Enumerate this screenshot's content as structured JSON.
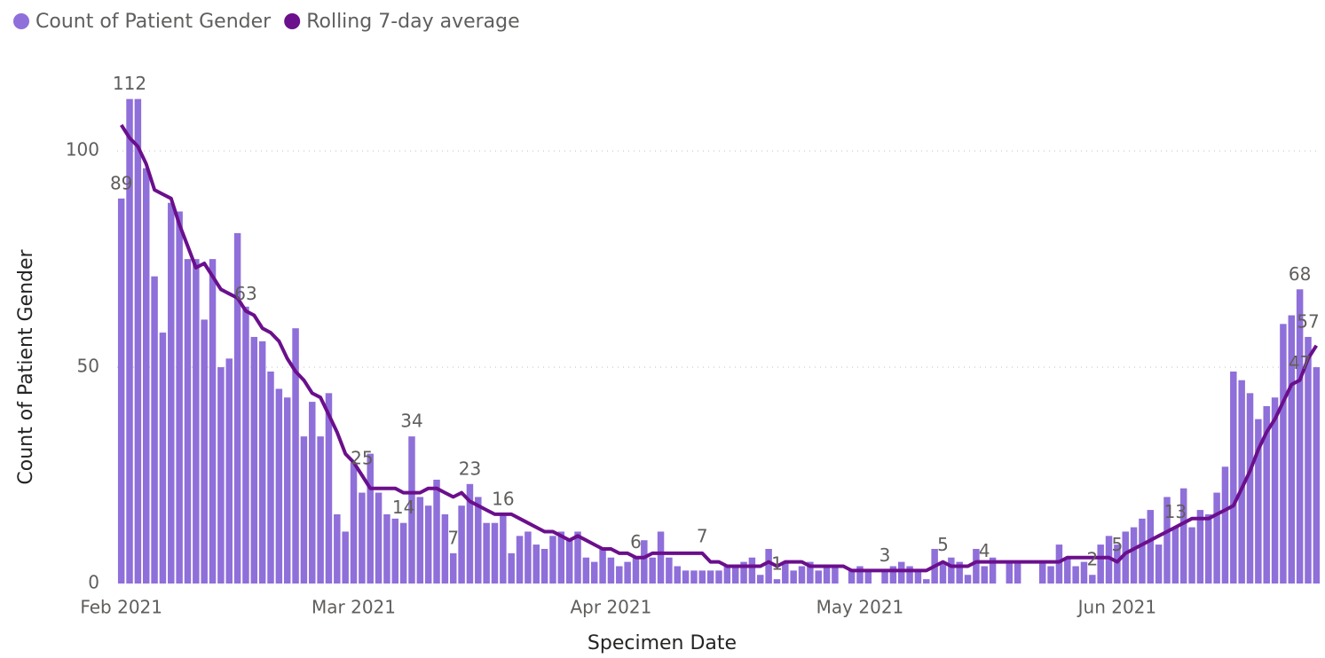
{
  "chart_data": {
    "type": "bar_line",
    "y_axis_label": "Count of Patient Gender",
    "x_axis_label": "Specimen Date",
    "categories": [
      "Feb 2021",
      null,
      null,
      null,
      null,
      null,
      null,
      null,
      null,
      null,
      null,
      null,
      null,
      null,
      null,
      null,
      null,
      null,
      null,
      null,
      null,
      null,
      null,
      null,
      null,
      null,
      null,
      null,
      "Mar 2021",
      null,
      null,
      null,
      null,
      null,
      null,
      null,
      null,
      null,
      null,
      null,
      null,
      null,
      null,
      null,
      null,
      null,
      null,
      null,
      null,
      null,
      null,
      null,
      null,
      null,
      null,
      null,
      null,
      null,
      null,
      "Apr 2021",
      null,
      null,
      null,
      null,
      null,
      null,
      null,
      null,
      null,
      null,
      null,
      null,
      null,
      null,
      null,
      null,
      null,
      null,
      null,
      null,
      null,
      null,
      null,
      null,
      null,
      null,
      null,
      null,
      null,
      "May 2021",
      null,
      null,
      null,
      null,
      null,
      null,
      null,
      null,
      null,
      null,
      null,
      null,
      null,
      null,
      null,
      null,
      null,
      null,
      null,
      null,
      null,
      null,
      null,
      null,
      null,
      null,
      null,
      null,
      null,
      null,
      "Jun 2021",
      null,
      null,
      null,
      null,
      null,
      null,
      null,
      null,
      null,
      null,
      null,
      null,
      null,
      null,
      null,
      null,
      null,
      null,
      null,
      null,
      null,
      null,
      null,
      null
    ],
    "series": [
      {
        "name": "Count of Patient Gender",
        "color": "#8f6fd9",
        "kind": "bar",
        "values": [
          89,
          112,
          112,
          96,
          71,
          58,
          88,
          86,
          75,
          75,
          61,
          75,
          50,
          52,
          81,
          64,
          57,
          56,
          49,
          45,
          43,
          59,
          34,
          42,
          34,
          44,
          16,
          12,
          28,
          21,
          30,
          21,
          16,
          15,
          14,
          34,
          20,
          18,
          24,
          16,
          7,
          18,
          23,
          20,
          14,
          14,
          16,
          7,
          11,
          12,
          9,
          8,
          11,
          12,
          10,
          12,
          6,
          5,
          8,
          6,
          4,
          5,
          6,
          10,
          6,
          12,
          6,
          4,
          3,
          3,
          3,
          3,
          3,
          4,
          4,
          5,
          6,
          2,
          8,
          1,
          5,
          3,
          4,
          5,
          3,
          4,
          4,
          0,
          3,
          4,
          3,
          0,
          3,
          4,
          5,
          4,
          3,
          1,
          8,
          5,
          6,
          5,
          2,
          8,
          4,
          6,
          0,
          5,
          5,
          0,
          0,
          5,
          4,
          9,
          6,
          4,
          5,
          2,
          9,
          11,
          9,
          12,
          13,
          15,
          17,
          9,
          20,
          13,
          22,
          13,
          17,
          16,
          21,
          27,
          49,
          47,
          44,
          38,
          41,
          43,
          60,
          62,
          68,
          57,
          50
        ],
        "value_labels": [
          "89",
          "112",
          null,
          null,
          null,
          null,
          null,
          null,
          null,
          null,
          null,
          null,
          null,
          null,
          null,
          null,
          null,
          null,
          null,
          null,
          null,
          null,
          null,
          null,
          null,
          null,
          null,
          null,
          null,
          null,
          null,
          null,
          null,
          null,
          "14",
          "34",
          null,
          null,
          null,
          null,
          "7",
          null,
          "23",
          null,
          null,
          null,
          "16",
          null,
          null,
          null,
          null,
          null,
          null,
          null,
          null,
          null,
          null,
          null,
          null,
          null,
          null,
          null,
          "6",
          null,
          null,
          null,
          null,
          null,
          null,
          null,
          null,
          null,
          null,
          null,
          null,
          null,
          null,
          null,
          null,
          "1",
          null,
          null,
          null,
          null,
          null,
          null,
          null,
          null,
          null,
          null,
          null,
          null,
          "3",
          null,
          null,
          null,
          null,
          null,
          null,
          null,
          null,
          null,
          null,
          null,
          "4",
          null,
          null,
          null,
          null,
          null,
          null,
          null,
          null,
          null,
          null,
          null,
          null,
          "2",
          null,
          null,
          null,
          null,
          null,
          null,
          null,
          null,
          null,
          "13",
          null,
          null,
          null,
          null,
          null,
          null,
          null,
          null,
          null,
          null,
          null,
          null,
          null,
          null,
          "68",
          "57",
          null
        ]
      },
      {
        "name": "Rolling 7-day average",
        "color": "#6b0f8c",
        "kind": "line",
        "values": [
          106,
          103,
          101,
          97,
          91,
          90,
          89,
          83,
          78,
          73,
          74,
          71,
          68,
          67,
          66,
          63,
          62,
          59,
          58,
          56,
          52,
          49,
          47,
          44,
          43,
          39,
          35,
          30,
          28,
          25,
          22,
          22,
          22,
          22,
          21,
          21,
          21,
          22,
          22,
          21,
          20,
          21,
          19,
          18,
          17,
          16,
          16,
          16,
          15,
          14,
          13,
          12,
          12,
          11,
          10,
          11,
          10,
          9,
          8,
          8,
          7,
          7,
          6,
          6,
          7,
          7,
          7,
          7,
          7,
          7,
          7,
          5,
          5,
          4,
          4,
          4,
          4,
          4,
          5,
          4,
          5,
          5,
          5,
          4,
          4,
          4,
          4,
          4,
          3,
          3,
          3,
          3,
          3,
          3,
          3,
          3,
          3,
          3,
          4,
          5,
          4,
          4,
          4,
          5,
          5,
          5,
          5,
          5,
          5,
          5,
          5,
          5,
          5,
          5,
          6,
          6,
          6,
          6,
          6,
          6,
          5,
          7,
          8,
          9,
          10,
          11,
          12,
          13,
          14,
          15,
          15,
          15,
          16,
          17,
          18,
          22,
          26,
          31,
          35,
          38,
          42,
          46,
          47,
          52,
          55
        ],
        "value_labels": [
          null,
          null,
          null,
          null,
          null,
          null,
          null,
          null,
          null,
          null,
          null,
          null,
          null,
          null,
          null,
          "63",
          null,
          null,
          null,
          null,
          null,
          null,
          null,
          null,
          null,
          null,
          null,
          null,
          null,
          "25",
          null,
          null,
          null,
          null,
          null,
          null,
          null,
          null,
          null,
          null,
          null,
          null,
          null,
          null,
          null,
          null,
          null,
          null,
          null,
          null,
          null,
          null,
          null,
          null,
          null,
          null,
          null,
          null,
          null,
          null,
          null,
          null,
          null,
          null,
          null,
          null,
          null,
          null,
          null,
          null,
          "7",
          null,
          null,
          null,
          null,
          null,
          null,
          null,
          null,
          null,
          null,
          null,
          null,
          null,
          null,
          null,
          null,
          null,
          null,
          null,
          null,
          null,
          null,
          null,
          null,
          null,
          null,
          null,
          null,
          "5",
          null,
          null,
          null,
          null,
          null,
          null,
          null,
          null,
          null,
          null,
          null,
          null,
          null,
          null,
          null,
          null,
          null,
          null,
          null,
          null,
          "5",
          null,
          null,
          null,
          null,
          null,
          null,
          null,
          null,
          null,
          null,
          null,
          null,
          null,
          null,
          null,
          null,
          null,
          null,
          null,
          null,
          null,
          "47",
          null,
          null
        ]
      }
    ],
    "ylim": [
      0,
      115
    ],
    "yticks": [
      0,
      50,
      100
    ],
    "grid": true,
    "legend": "top-left"
  }
}
